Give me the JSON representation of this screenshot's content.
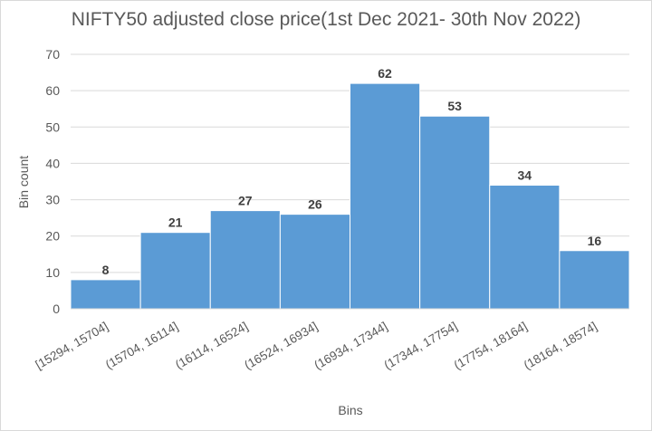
{
  "chart_data": {
    "type": "bar",
    "title": "NIFTY50 adjusted close price(1st Dec 2021- 30th Nov 2022)",
    "xlabel": "Bins",
    "ylabel": "Bin count",
    "categories": [
      "[15294, 15704]",
      "(15704, 16114]",
      "(16114, 16524]",
      "(16524, 16934]",
      "(16934, 17344]",
      "(17344, 17754]",
      "(17754, 18164]",
      "(18164, 18574]"
    ],
    "values": [
      8,
      21,
      27,
      26,
      62,
      53,
      34,
      16
    ],
    "ylim": [
      0,
      70
    ],
    "yticks": [
      0,
      10,
      20,
      30,
      40,
      50,
      60,
      70
    ],
    "grid": true,
    "bar_color": "#5b9bd5",
    "grid_color": "#d9d9d9"
  }
}
